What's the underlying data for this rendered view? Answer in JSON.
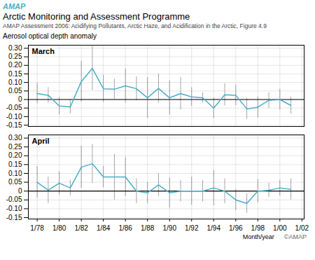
{
  "chart_data": [
    {
      "type": "line",
      "title": "Arctic Monitoring and Assessment Programme",
      "subtitle": "AMAP Assessment 2006: Acidifying Pollutants, Arctic Haze, and Acidification in the Arctic, Figure 4.9",
      "ylabel": "Aerosol optical depth anomaly",
      "annotations": [
        "AMAP",
        "March"
      ],
      "color": "#4aaec8",
      "x": [
        1978,
        1979,
        1980,
        1981,
        1982,
        1983,
        1984,
        1985,
        1986,
        1987,
        1988,
        1989,
        1990,
        1991,
        1992,
        1993,
        1994,
        1995,
        1996,
        1997,
        1998,
        1999,
        2000,
        2001
      ],
      "values": [
        0.035,
        0.025,
        -0.038,
        -0.043,
        0.105,
        0.183,
        0.063,
        0.06,
        0.08,
        0.063,
        0.01,
        0.065,
        0.01,
        0.035,
        0.015,
        0.01,
        -0.05,
        0.028,
        0.025,
        -0.055,
        -0.045,
        -0.005,
        0.0,
        -0.035
      ],
      "error": [
        0.06,
        0.045,
        0.05,
        0.04,
        0.12,
        0.13,
        0.08,
        0.06,
        0.1,
        0.07,
        0.12,
        0.085,
        0.1,
        0.095,
        0.055,
        0.03,
        0.06,
        0.065,
        0.06,
        0.06,
        0.06,
        0.045,
        0.06,
        0.05
      ],
      "xlim": [
        1977.2,
        2002.2
      ],
      "xticks": [
        1978,
        1980,
        1982,
        1984,
        1986,
        1988,
        1990,
        1992,
        1994,
        1996,
        1998,
        2000,
        2002
      ],
      "ylim": [
        -0.158,
        0.318
      ],
      "yticks": [
        -0.15,
        {
          "value": -0.1,
          "label": "-0.10"
        },
        -0.05,
        0,
        0.05,
        {
          "value": 0.1,
          "label": "0.10"
        },
        0.15,
        {
          "value": 0.2,
          "label": "0.20"
        },
        0.25,
        {
          "value": 0.3,
          "label": "0.30"
        }
      ],
      "grid": true,
      "tick_labels": "y"
    },
    {
      "type": "line",
      "xlabel": "Month/year",
      "annotations": [
        "April",
        "©AMAP"
      ],
      "color": "#4aaec8",
      "x": [
        1978,
        1979,
        1980,
        1981,
        1982,
        1983,
        1984,
        1985,
        1986,
        1987,
        1988,
        1989,
        1990,
        1991,
        1992,
        1993,
        1994,
        1995,
        1996,
        1997,
        1998,
        1999,
        2000,
        2001
      ],
      "values": [
        0.05,
        0.005,
        0.045,
        0.018,
        0.135,
        0.155,
        0.08,
        0.08,
        0.08,
        0.0,
        -0.01,
        0.035,
        -0.01,
        0.0,
        0.0,
        0.0,
        0.018,
        0.0,
        -0.05,
        -0.07,
        0.0,
        0.005,
        0.018,
        0.01
      ],
      "error": [
        0.09,
        0.075,
        0.065,
        0.045,
        0.12,
        0.11,
        0.06,
        0.13,
        0.11,
        0.07,
        0.06,
        0.065,
        0.085,
        0.06,
        0.08,
        0.06,
        0.1,
        0.07,
        0.06,
        0.055,
        0.065,
        0.04,
        0.045,
        0.06
      ],
      "xlim": [
        1977.2,
        2002.2
      ],
      "xticks": [
        {
          "value": 1978,
          "label": "1/78"
        },
        {
          "value": 1980,
          "label": "1/80"
        },
        {
          "value": 1982,
          "label": "1/82"
        },
        {
          "value": 1984,
          "label": "1/84"
        },
        {
          "value": 1986,
          "label": "1/86"
        },
        {
          "value": 1988,
          "label": "1/88"
        },
        {
          "value": 1990,
          "label": "1/90"
        },
        {
          "value": 1992,
          "label": "1/92"
        },
        {
          "value": 1994,
          "label": "1/94"
        },
        {
          "value": 1996,
          "label": "1/96"
        },
        {
          "value": 1998,
          "label": "1/98"
        },
        {
          "value": 2000,
          "label": "1/00"
        },
        {
          "value": 2002,
          "label": "1/02"
        }
      ],
      "ylim": [
        -0.158,
        0.318
      ],
      "yticks": [
        -0.15,
        {
          "value": -0.1,
          "label": "-0.10"
        },
        -0.05,
        0,
        0.05,
        {
          "value": 0.1,
          "label": "0.10"
        },
        0.15,
        {
          "value": 0.2,
          "label": "0.20"
        },
        0.25,
        {
          "value": 0.3,
          "label": "0.30"
        }
      ],
      "grid": true
    }
  ]
}
